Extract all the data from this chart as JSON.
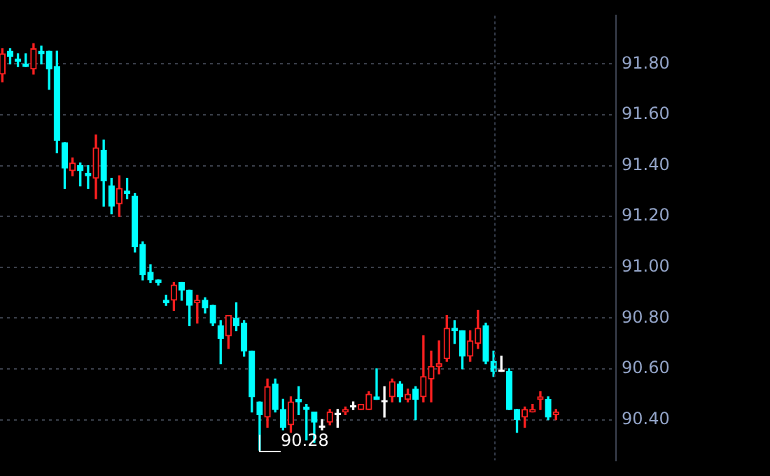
{
  "chart_data": {
    "type": "candlestick",
    "categories": [
      null,
      null,
      null,
      null,
      null,
      null,
      null,
      null,
      null,
      null,
      null,
      null,
      null,
      null,
      null,
      null,
      null,
      null,
      null,
      null,
      null,
      null,
      null,
      null,
      null,
      null,
      null,
      null,
      null,
      null,
      null,
      null,
      null,
      null,
      null,
      null,
      null,
      null,
      null,
      null,
      null,
      null,
      null,
      null,
      null,
      null,
      null,
      null,
      null,
      null,
      null,
      null,
      null,
      null,
      null,
      null,
      null,
      null,
      null,
      null,
      null,
      null,
      null,
      null,
      null,
      null,
      null,
      null,
      null,
      null,
      null,
      null
    ],
    "ohlc": [
      [
        91.76,
        91.86,
        91.73,
        91.84
      ],
      [
        91.85,
        91.86,
        91.8,
        91.83
      ],
      [
        91.82,
        91.84,
        91.79,
        91.81
      ],
      [
        91.8,
        91.84,
        91.79,
        91.79
      ],
      [
        91.78,
        91.88,
        91.76,
        91.86
      ],
      [
        91.85,
        91.87,
        91.8,
        91.84
      ],
      [
        91.85,
        91.85,
        91.7,
        91.78
      ],
      [
        91.79,
        91.85,
        91.45,
        91.5
      ],
      [
        91.49,
        91.49,
        91.31,
        91.39
      ],
      [
        91.38,
        91.43,
        91.36,
        91.41
      ],
      [
        91.4,
        91.41,
        91.32,
        91.38
      ],
      [
        91.37,
        91.4,
        91.31,
        91.36
      ],
      [
        91.35,
        91.52,
        91.27,
        91.47
      ],
      [
        91.46,
        91.5,
        91.24,
        91.34
      ],
      [
        91.32,
        91.35,
        91.21,
        91.24
      ],
      [
        91.25,
        91.36,
        91.2,
        91.31
      ],
      [
        91.3,
        91.35,
        91.27,
        91.29
      ],
      [
        91.28,
        91.29,
        91.06,
        91.08
      ],
      [
        91.09,
        91.1,
        90.95,
        90.97
      ],
      [
        90.98,
        91.01,
        90.94,
        90.95
      ],
      [
        90.95,
        90.95,
        90.93,
        90.94
      ],
      [
        90.87,
        90.89,
        90.85,
        90.86
      ],
      [
        90.87,
        90.94,
        90.83,
        90.93
      ],
      [
        90.94,
        90.94,
        90.87,
        90.91
      ],
      [
        90.91,
        90.91,
        90.77,
        90.85
      ],
      [
        90.86,
        90.89,
        90.78,
        90.87
      ],
      [
        90.87,
        90.88,
        90.82,
        90.84
      ],
      [
        90.85,
        90.85,
        90.77,
        90.78
      ],
      [
        90.77,
        90.79,
        90.62,
        90.72
      ],
      [
        90.73,
        90.81,
        90.68,
        90.81
      ],
      [
        90.8,
        90.86,
        90.75,
        90.77
      ],
      [
        90.78,
        90.79,
        90.65,
        90.67
      ],
      [
        90.67,
        90.67,
        90.43,
        90.49
      ],
      [
        90.47,
        90.47,
        90.28,
        90.42
      ],
      [
        90.41,
        90.56,
        90.37,
        90.53
      ],
      [
        90.54,
        90.56,
        90.43,
        90.44
      ],
      [
        90.44,
        90.48,
        90.36,
        90.37
      ],
      [
        90.38,
        90.49,
        90.35,
        90.47
      ],
      [
        90.48,
        90.53,
        90.42,
        90.47
      ],
      [
        90.45,
        90.46,
        90.32,
        90.44
      ],
      [
        90.43,
        90.43,
        90.31,
        90.39
      ],
      [
        90.37,
        90.4,
        90.36,
        90.37
      ],
      [
        90.39,
        90.44,
        90.38,
        90.43
      ],
      [
        90.42,
        90.44,
        90.37,
        90.42
      ],
      [
        90.43,
        90.45,
        90.42,
        90.44
      ],
      [
        90.45,
        90.47,
        90.44,
        90.45
      ],
      [
        90.44,
        90.46,
        90.44,
        90.46
      ],
      [
        90.44,
        90.51,
        90.44,
        90.5
      ],
      [
        90.49,
        90.6,
        90.48,
        90.48
      ],
      [
        90.47,
        90.53,
        90.41,
        90.47
      ],
      [
        90.49,
        90.56,
        90.47,
        90.55
      ],
      [
        90.54,
        90.55,
        90.47,
        90.49
      ],
      [
        90.48,
        90.52,
        90.47,
        90.5
      ],
      [
        90.52,
        90.53,
        90.4,
        90.48
      ],
      [
        90.49,
        90.73,
        90.47,
        90.57
      ],
      [
        90.56,
        90.67,
        90.47,
        90.61
      ],
      [
        90.61,
        90.71,
        90.58,
        90.62
      ],
      [
        90.64,
        90.81,
        90.63,
        90.76
      ],
      [
        90.76,
        90.79,
        90.7,
        90.75
      ],
      [
        90.75,
        90.75,
        90.6,
        90.65
      ],
      [
        90.65,
        90.75,
        90.63,
        90.71
      ],
      [
        90.7,
        90.83,
        90.68,
        90.76
      ],
      [
        90.77,
        90.78,
        90.62,
        90.63
      ],
      [
        90.63,
        90.67,
        90.57,
        90.59
      ],
      [
        90.59,
        90.65,
        90.59,
        90.59
      ],
      [
        90.59,
        90.6,
        90.44,
        90.44
      ],
      [
        90.44,
        90.44,
        90.35,
        90.4
      ],
      [
        90.41,
        90.45,
        90.37,
        90.44
      ],
      [
        90.43,
        90.46,
        90.43,
        90.44
      ],
      [
        90.48,
        90.51,
        90.44,
        90.49
      ],
      [
        90.48,
        90.49,
        90.4,
        90.41
      ],
      [
        90.42,
        90.44,
        90.4,
        90.43
      ]
    ],
    "colors": [
      "#ff2020",
      "#00ffff",
      "#00ffff",
      "#00ffff",
      "#ff2020",
      "#00ffff",
      "#00ffff",
      "#00ffff",
      "#00ffff",
      "#ff2020",
      "#00ffff",
      "#00ffff",
      "#ff2020",
      "#00ffff",
      "#00ffff",
      "#ff2020",
      "#00ffff",
      "#00ffff",
      "#00ffff",
      "#00ffff",
      "#00ffff",
      "#00ffff",
      "#ff2020",
      "#00ffff",
      "#00ffff",
      "#ff2020",
      "#00ffff",
      "#00ffff",
      "#00ffff",
      "#ff2020",
      "#00ffff",
      "#00ffff",
      "#00ffff",
      "#00ffff",
      "#ff2020",
      "#00ffff",
      "#00ffff",
      "#ff2020",
      "#00ffff",
      "#00ffff",
      "#00ffff",
      "#ffffff",
      "#ff2020",
      "#ffffff",
      "#ff2020",
      "#ffffff",
      "#ff2020",
      "#ff2020",
      "#00ffff",
      "#ffffff",
      "#ff2020",
      "#00ffff",
      "#ff2020",
      "#00ffff",
      "#ff2020",
      "#ff2020",
      "#ff2020",
      "#ff2020",
      "#00ffff",
      "#00ffff",
      "#ff2020",
      "#ff2020",
      "#00ffff",
      "#00ffff",
      "#ffffff",
      "#00ffff",
      "#00ffff",
      "#ff2020",
      "#ff2020",
      "#ff2020",
      "#00ffff",
      "#ff2020"
    ],
    "ylim": [
      90.24,
      91.99
    ],
    "yticks": [
      {
        "value": 90.4,
        "label": "90.40"
      },
      {
        "value": 90.6,
        "label": "90.60"
      },
      {
        "value": 90.8,
        "label": "90.80"
      },
      {
        "value": 91.0,
        "label": "91.00"
      },
      {
        "value": 91.2,
        "label": "91.20"
      },
      {
        "value": 91.4,
        "label": "91.40"
      },
      {
        "value": 91.6,
        "label": "91.60"
      },
      {
        "value": 91.8,
        "label": "91.80"
      }
    ],
    "grid": "y",
    "tick_labels": "y",
    "annotations": [
      "90.28"
    ]
  }
}
